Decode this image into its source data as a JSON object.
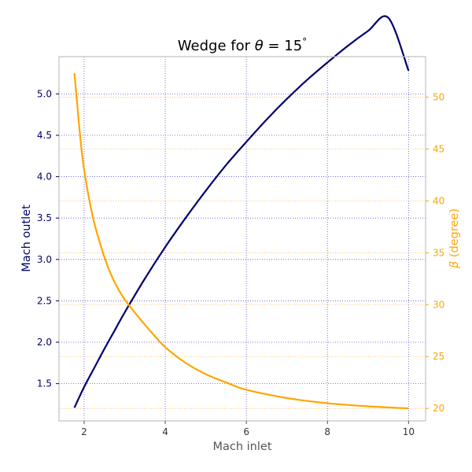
{
  "chart_data": {
    "type": "line",
    "title": "Wedge for θ = 15°",
    "title_parts": {
      "prefix": "Wedge for ",
      "theta": "θ",
      "eq": " = 15",
      "deg": "°"
    },
    "xlabel": "Mach inlet",
    "ylabel_left": "Mach outlet",
    "ylabel_right": {
      "symbol": "β",
      "text": " (degree)"
    },
    "xlim": [
      1.38,
      10.42
    ],
    "ylim_left": [
      1.05,
      5.45
    ],
    "ylim_right": [
      18.8,
      53.9
    ],
    "x_ticks": [
      2,
      4,
      6,
      8,
      10
    ],
    "y_left_ticks": [
      "1.5",
      "2.0",
      "2.5",
      "3.0",
      "3.5",
      "4.0",
      "4.5",
      "5.0"
    ],
    "y_right_ticks": [
      "20",
      "25",
      "30",
      "35",
      "40",
      "45",
      "50"
    ],
    "grid": true,
    "colors": {
      "mach_outlet": "#00006e",
      "beta": "#ffa500",
      "frame": "#c0c0c0",
      "grid_left": "#5a5ac8",
      "grid_right": "#ffb84d",
      "xlabel": "#555555"
    },
    "series": [
      {
        "axis": "left",
        "x": [
          1.76,
          2.0,
          2.25,
          2.5,
          2.75,
          3.0,
          3.5,
          4.0,
          4.5,
          5.0,
          5.5,
          6.0,
          6.5,
          7.0,
          7.5,
          8.0,
          8.5,
          9.0,
          9.5,
          10.0
        ],
        "values": [
          1.21,
          1.46,
          1.69,
          1.92,
          2.14,
          2.36,
          2.77,
          3.15,
          3.5,
          3.83,
          4.14,
          4.42,
          4.69,
          4.94,
          5.17,
          5.38,
          5.58,
          5.76,
          5.92,
          5.28
        ]
      },
      {
        "axis": "right",
        "x": [
          1.76,
          1.8,
          1.9,
          2.0,
          2.2,
          2.4,
          2.6,
          2.8,
          3.0,
          3.3,
          3.6,
          4.0,
          4.5,
          5.0,
          5.5,
          6.0,
          7.0,
          8.0,
          9.0,
          10.0
        ],
        "values": [
          52.3,
          50.6,
          46.3,
          43.0,
          38.7,
          35.8,
          33.5,
          31.8,
          30.5,
          29.0,
          27.6,
          25.9,
          24.4,
          23.3,
          22.5,
          21.8,
          21.0,
          20.5,
          20.2,
          20.0
        ]
      }
    ]
  }
}
